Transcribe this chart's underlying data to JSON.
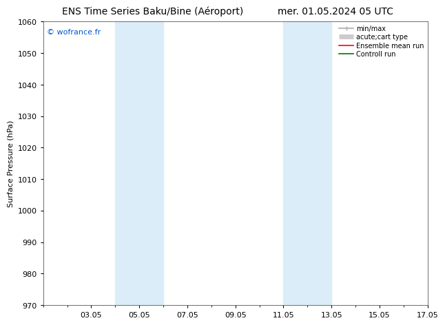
{
  "title_left": "ENS Time Series Baku/Bine (Aéroport)",
  "title_right": "mer. 01.05.2024 05 UTC",
  "ylabel": "Surface Pressure (hPa)",
  "ylim": [
    970,
    1060
  ],
  "yticks": [
    970,
    980,
    990,
    1000,
    1010,
    1020,
    1030,
    1040,
    1050,
    1060
  ],
  "xlim": [
    1,
    17
  ],
  "xtick_labels": [
    "03.05",
    "05.05",
    "07.05",
    "09.05",
    "11.05",
    "13.05",
    "15.05",
    "17.05"
  ],
  "xtick_positions": [
    3,
    5,
    7,
    9,
    11,
    13,
    15,
    17
  ],
  "shaded_bands": [
    {
      "x_start": 4.0,
      "x_end": 6.0
    },
    {
      "x_start": 11.0,
      "x_end": 13.0
    }
  ],
  "shaded_color": "#daedf8",
  "background_color": "#ffffff",
  "plot_bg_color": "#ffffff",
  "watermark_text": "© wofrance.fr",
  "watermark_color": "#0055cc",
  "legend_minmax_color": "#aaaaaa",
  "legend_acute_color": "#cccccc",
  "legend_ensemble_color": "#ff0000",
  "legend_control_color": "#007700",
  "title_fontsize": 10,
  "ylabel_fontsize": 8,
  "tick_fontsize": 8,
  "watermark_fontsize": 8,
  "legend_fontsize": 7
}
